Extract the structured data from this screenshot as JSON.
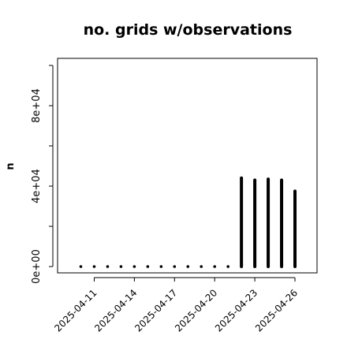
{
  "chart_data": {
    "type": "bar",
    "title": "no. grids w/observations",
    "xlabel": "",
    "ylabel": "n",
    "ylim": [
      0,
      100000
    ],
    "yticks": [
      {
        "value": 0,
        "label": "0e+00"
      },
      {
        "value": 40000,
        "label": "4e+04"
      },
      {
        "value": 80000,
        "label": "8e+04"
      }
    ],
    "x": [
      "2025-04-10",
      "2025-04-11",
      "2025-04-12",
      "2025-04-13",
      "2025-04-14",
      "2025-04-15",
      "2025-04-16",
      "2025-04-17",
      "2025-04-18",
      "2025-04-19",
      "2025-04-20",
      "2025-04-21",
      "2025-04-22",
      "2025-04-23",
      "2025-04-24",
      "2025-04-25",
      "2025-04-26"
    ],
    "values": [
      0,
      0,
      0,
      0,
      0,
      0,
      0,
      0,
      0,
      0,
      0,
      0,
      44000,
      43000,
      43500,
      43000,
      37500
    ],
    "xticks": [
      {
        "label": "2025-04-11",
        "color": "#000000"
      },
      {
        "label": "2025-04-14",
        "color": "#000000"
      },
      {
        "label": "2025-04-17",
        "color": "#228B22"
      },
      {
        "label": "2025-04-20",
        "color": "#000000"
      },
      {
        "label": "2025-04-23",
        "color": "#000000"
      },
      {
        "label": "2025-04-26",
        "color": "#000000"
      }
    ],
    "grid": false,
    "colors": {
      "bar": "#000000",
      "axis": "#000000",
      "highlight_tick": "#228B22"
    }
  }
}
